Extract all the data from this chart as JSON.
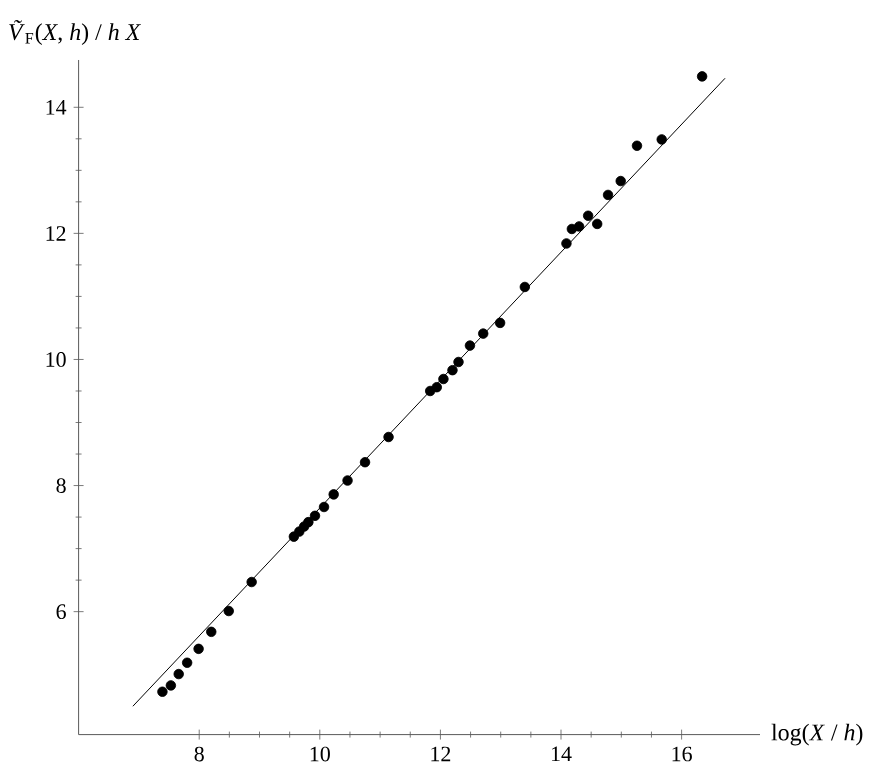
{
  "chart_data": {
    "type": "scatter",
    "xlabel": "log(*X* / *h*)",
    "ylabel": "*Ṽ*$_{F}$(*X*, *h*) / *h X*",
    "xlim": [
      6,
      17.3
    ],
    "ylim": [
      4.05,
      14.75
    ],
    "xticks": [
      8,
      10,
      12,
      14,
      16
    ],
    "yticks": [
      6,
      8,
      10,
      12,
      14
    ],
    "marker": "circle",
    "series": [
      {
        "color": "#000000",
        "x": [
          7.39,
          7.53,
          7.66,
          7.8,
          7.99,
          8.2,
          8.49,
          8.87,
          9.57,
          9.66,
          9.74,
          9.81,
          9.92,
          10.07,
          10.23,
          10.46,
          10.75,
          11.14,
          11.83,
          11.94,
          12.05,
          12.2,
          12.3,
          12.49,
          12.71,
          12.99,
          13.4,
          14.09,
          14.18,
          14.3,
          14.45,
          14.6,
          14.78,
          14.99,
          15.26,
          15.67,
          16.34
        ],
        "values": [
          4.73,
          4.83,
          5.01,
          5.19,
          5.41,
          5.68,
          6.01,
          6.47,
          7.19,
          7.27,
          7.35,
          7.42,
          7.52,
          7.66,
          7.86,
          8.08,
          8.37,
          8.77,
          9.5,
          9.56,
          9.69,
          9.83,
          9.96,
          10.22,
          10.41,
          10.58,
          11.15,
          11.84,
          12.07,
          12.11,
          12.28,
          12.15,
          12.61,
          12.83,
          13.39,
          13.49,
          14.49
        ]
      },
      {
        "type": "line",
        "color": "#000000",
        "marker": "none",
        "x": [
          6.9,
          16.72
        ],
        "values": [
          4.5,
          14.46
        ]
      }
    ]
  }
}
